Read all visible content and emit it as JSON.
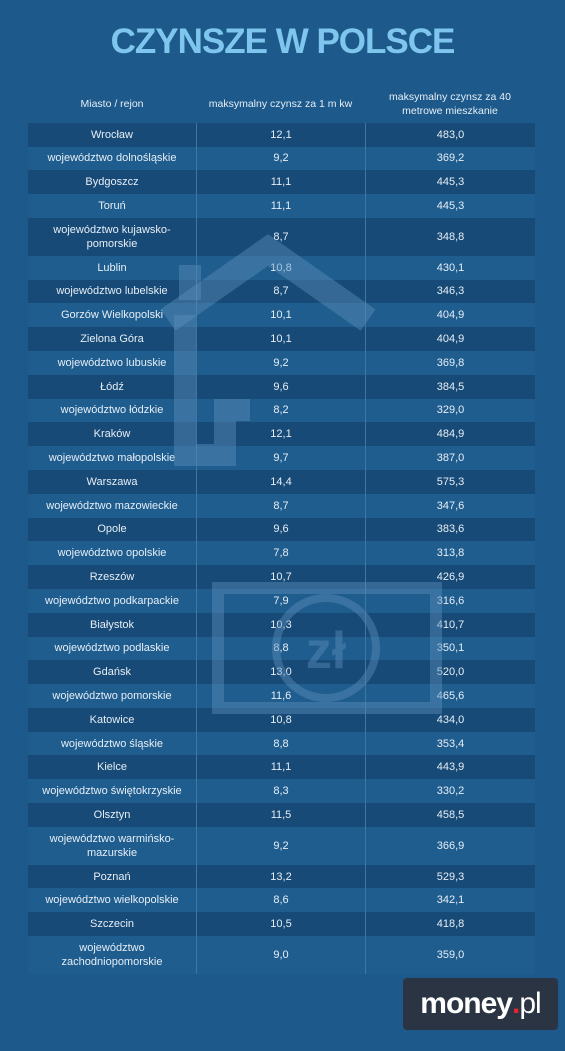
{
  "header": {
    "title": "CZYNSZE W POLSCE"
  },
  "table": {
    "columns": [
      "Miasto / rejon",
      "maksymalny czynsz za 1 m kw",
      "maksymalny czynsz za 40 metrowe mieszkanie"
    ],
    "rows": [
      [
        "Wrocław",
        "12,1",
        "483,0"
      ],
      [
        "województwo dolnośląskie",
        "9,2",
        "369,2"
      ],
      [
        "Bydgoszcz",
        "11,1",
        "445,3"
      ],
      [
        "Toruń",
        "11,1",
        "445,3"
      ],
      [
        "województwo kujawsko-pomorskie",
        "8,7",
        "348,8"
      ],
      [
        "Lublin",
        "10,8",
        "430,1"
      ],
      [
        "województwo lubelskie",
        "8,7",
        "346,3"
      ],
      [
        "Gorzów Wielkopolski",
        "10,1",
        "404,9"
      ],
      [
        "Zielona Góra",
        "10,1",
        "404,9"
      ],
      [
        "województwo lubuskie",
        "9,2",
        "369,8"
      ],
      [
        "Łódź",
        "9,6",
        "384,5"
      ],
      [
        "województwo łódzkie",
        "8,2",
        "329,0"
      ],
      [
        "Kraków",
        "12,1",
        "484,9"
      ],
      [
        "województwo małopolskie",
        "9,7",
        "387,0"
      ],
      [
        "Warszawa",
        "14,4",
        "575,3"
      ],
      [
        "województwo mazowieckie",
        "8,7",
        "347,6"
      ],
      [
        "Opole",
        "9,6",
        "383,6"
      ],
      [
        "województwo opolskie",
        "7,8",
        "313,8"
      ],
      [
        "Rzeszów",
        "10,7",
        "426,9"
      ],
      [
        "województwo podkarpackie",
        "7,9",
        "316,6"
      ],
      [
        "Białystok",
        "10,3",
        "410,7"
      ],
      [
        "województwo podlaskie",
        "8,8",
        "350,1"
      ],
      [
        "Gdańsk",
        "13,0",
        "520,0"
      ],
      [
        "województwo pomorskie",
        "11,6",
        "465,6"
      ],
      [
        "Katowice",
        "10,8",
        "434,0"
      ],
      [
        "województwo śląskie",
        "8,8",
        "353,4"
      ],
      [
        "Kielce",
        "11,1",
        "443,9"
      ],
      [
        "województwo świętokrzyskie",
        "8,3",
        "330,2"
      ],
      [
        "Olsztyn",
        "11,5",
        "458,5"
      ],
      [
        "województwo warmińsko-mazurskie",
        "9,2",
        "366,9"
      ],
      [
        "Poznań",
        "13,2",
        "529,3"
      ],
      [
        "województwo wielkopolskie",
        "8,6",
        "342,1"
      ],
      [
        "Szczecin",
        "10,5",
        "418,8"
      ],
      [
        "województwo zachodniopomorskie",
        "9,0",
        "359,0"
      ]
    ]
  },
  "logo": {
    "name": "money",
    "dot": ".",
    "tld": "pl"
  }
}
